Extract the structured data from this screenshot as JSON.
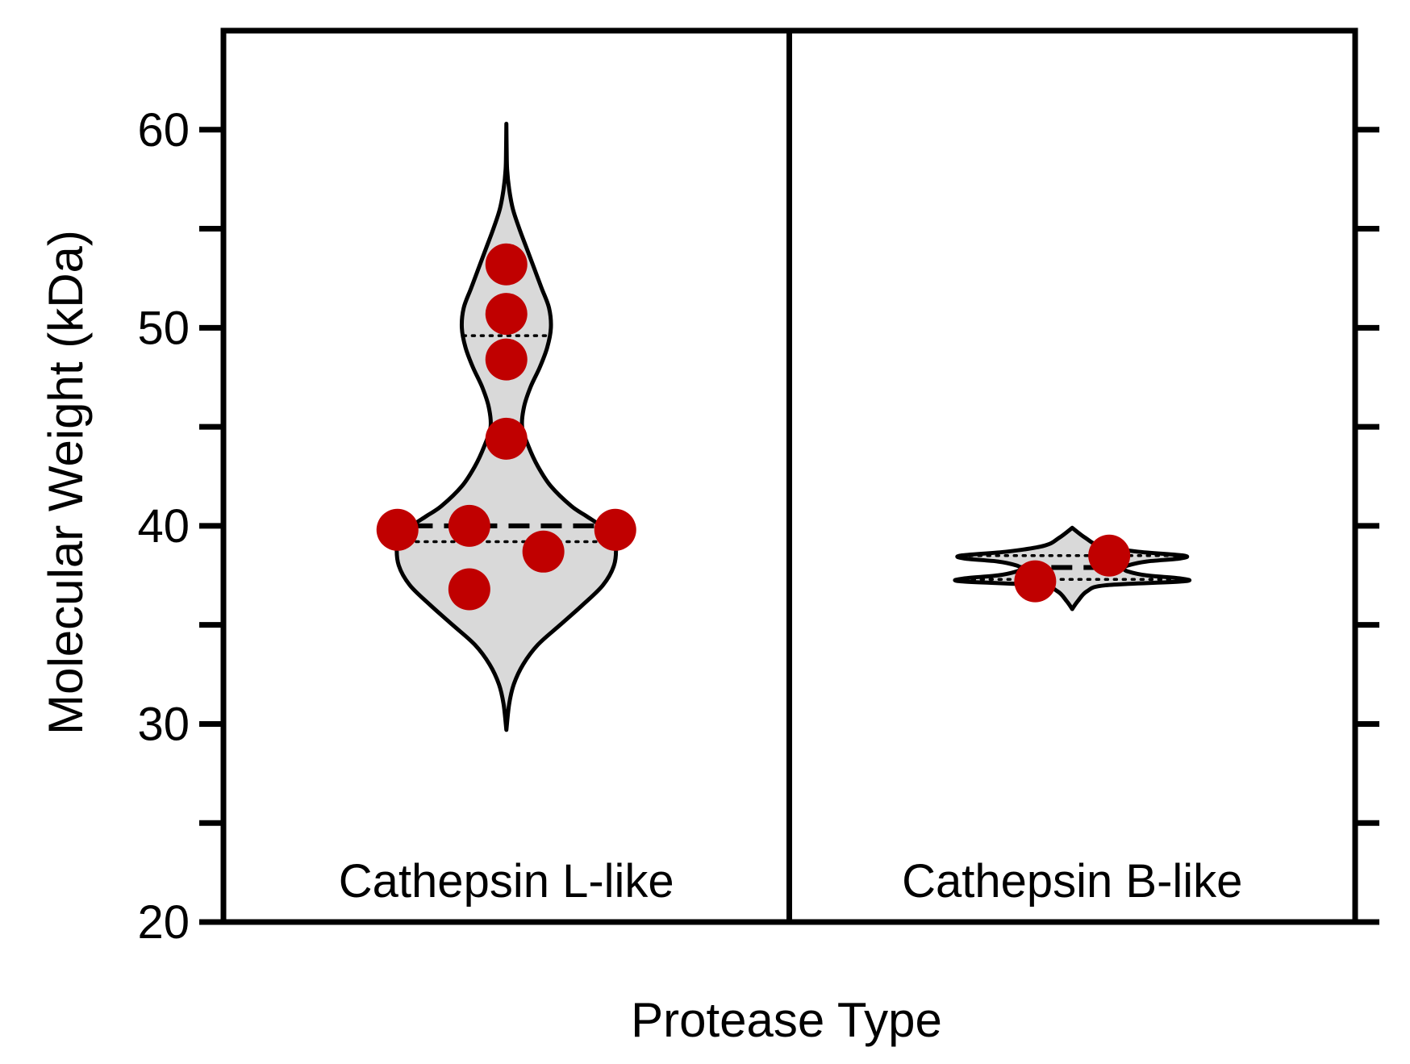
{
  "chart_data": {
    "type": "violin",
    "title": "",
    "xlabel": "Protease Type",
    "ylabel": "Molecular Weight (kDa)",
    "ylim": [
      20,
      65
    ],
    "yticks": [
      20,
      30,
      40,
      50,
      60
    ],
    "minor_yticks": [
      25,
      35,
      45,
      55
    ],
    "grid": false,
    "legend": "none",
    "colors": {
      "violin_fill": "#d9d9d9",
      "outline": "#000000",
      "point": "#c00000"
    },
    "groups": [
      {
        "label": "Cathepsin L-like",
        "median": 40.0,
        "quartiles": [
          39.2,
          49.6
        ],
        "range": [
          29.7,
          60.3
        ],
        "points": [
          {
            "x": 0.0,
            "y": 53.2
          },
          {
            "x": 0.0,
            "y": 50.7
          },
          {
            "x": 0.0,
            "y": 48.4
          },
          {
            "x": 0.0,
            "y": 44.4
          },
          {
            "x": -0.5,
            "y": 39.8
          },
          {
            "x": -0.17,
            "y": 40.0
          },
          {
            "x": 0.5,
            "y": 39.8
          },
          {
            "x": 0.17,
            "y": 38.7
          },
          {
            "x": -0.17,
            "y": 36.8
          }
        ],
        "density": [
          [
            29.7,
            0.0
          ],
          [
            31.0,
            0.015
          ],
          [
            32.0,
            0.04
          ],
          [
            33.0,
            0.09
          ],
          [
            34.0,
            0.17
          ],
          [
            35.0,
            0.29
          ],
          [
            36.0,
            0.41
          ],
          [
            37.0,
            0.52
          ],
          [
            38.0,
            0.58
          ],
          [
            39.0,
            0.59
          ],
          [
            39.5,
            0.57
          ],
          [
            40.0,
            0.51
          ],
          [
            40.5,
            0.43
          ],
          [
            41.0,
            0.35
          ],
          [
            42.0,
            0.24
          ],
          [
            43.0,
            0.17
          ],
          [
            44.0,
            0.12
          ],
          [
            45.0,
            0.085
          ],
          [
            46.0,
            0.095
          ],
          [
            47.0,
            0.13
          ],
          [
            48.0,
            0.18
          ],
          [
            49.0,
            0.22
          ],
          [
            50.0,
            0.24
          ],
          [
            51.0,
            0.23
          ],
          [
            52.0,
            0.19
          ],
          [
            53.0,
            0.15
          ],
          [
            54.0,
            0.11
          ],
          [
            55.0,
            0.07
          ],
          [
            56.0,
            0.035
          ],
          [
            57.0,
            0.015
          ],
          [
            58.0,
            0.004
          ],
          [
            59.0,
            0.0015
          ],
          [
            60.3,
            0.0
          ]
        ]
      },
      {
        "label": "Cathepsin B-like",
        "median": 37.9,
        "quartiles": [
          37.3,
          38.5
        ],
        "range": [
          35.8,
          39.9
        ],
        "points": [
          {
            "x": -0.17,
            "y": 37.2
          },
          {
            "x": 0.17,
            "y": 38.5
          }
        ],
        "density": [
          [
            35.8,
            0.0
          ],
          [
            36.2,
            0.03
          ],
          [
            36.7,
            0.08
          ],
          [
            37.0,
            0.18
          ],
          [
            37.2,
            0.6
          ],
          [
            37.35,
            0.58
          ],
          [
            37.5,
            0.4
          ],
          [
            37.7,
            0.3
          ],
          [
            37.85,
            0.28
          ],
          [
            38.0,
            0.3
          ],
          [
            38.2,
            0.4
          ],
          [
            38.35,
            0.58
          ],
          [
            38.5,
            0.6
          ],
          [
            38.7,
            0.35
          ],
          [
            39.0,
            0.15
          ],
          [
            39.4,
            0.07
          ],
          [
            39.9,
            0.0
          ]
        ]
      }
    ]
  }
}
